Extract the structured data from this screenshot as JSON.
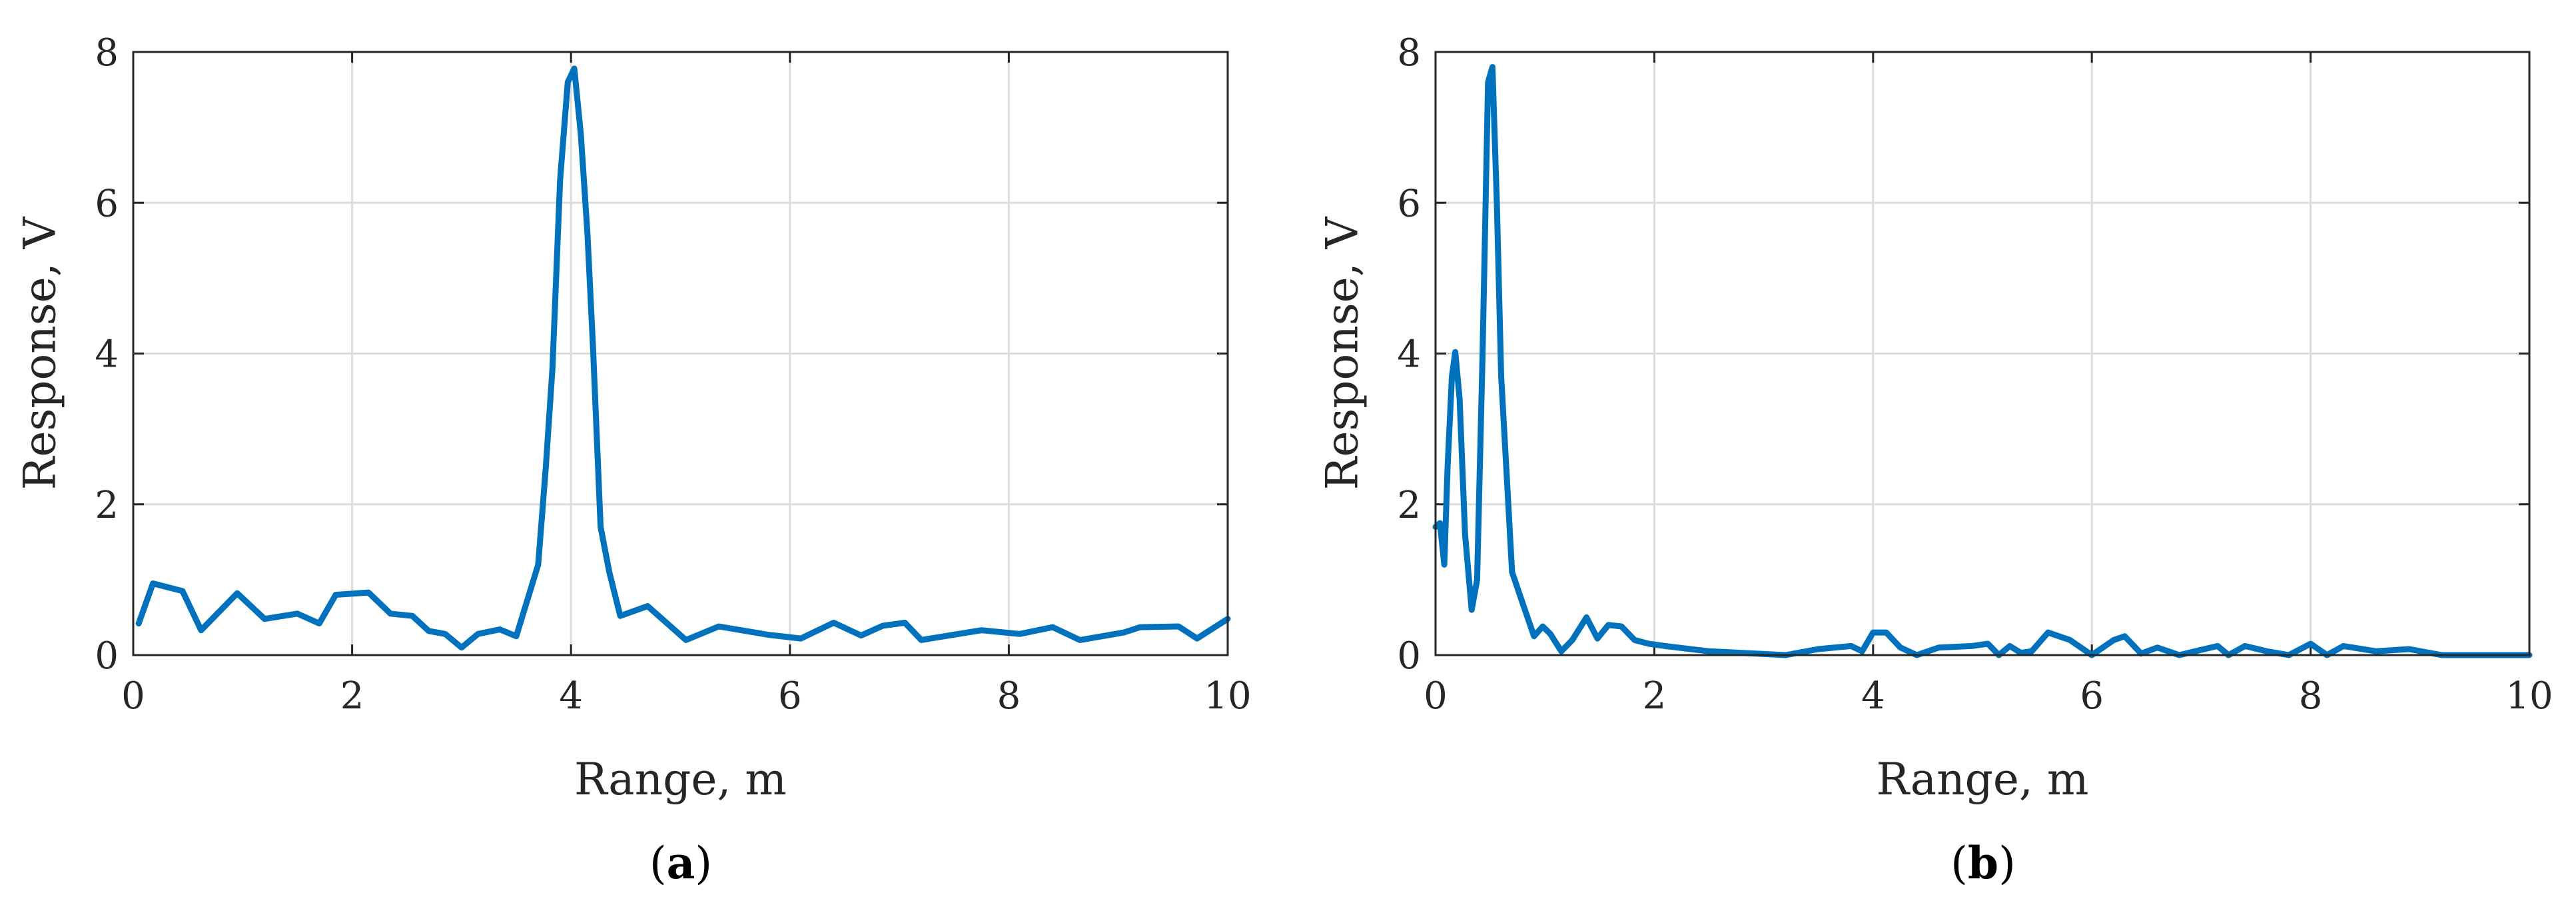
{
  "chart_data": [
    {
      "type": "line",
      "caption_letter": "a",
      "xlabel": "Range, m",
      "ylabel": "Response, V",
      "xlim": [
        0,
        10
      ],
      "ylim": [
        0,
        8
      ],
      "xticks": [
        0,
        2,
        4,
        6,
        8,
        10
      ],
      "yticks": [
        0,
        2,
        4,
        6,
        8
      ],
      "grid": true,
      "color": "#0072BD",
      "series": [
        {
          "x": [
            0.05,
            0.18,
            0.45,
            0.62,
            0.95,
            1.2,
            1.5,
            1.7,
            1.85,
            2.15,
            2.35,
            2.55,
            2.7,
            2.85,
            3.0,
            3.15,
            3.35,
            3.5,
            3.7,
            3.77,
            3.83,
            3.9,
            3.97,
            4.03,
            4.09,
            4.15,
            4.2,
            4.27,
            4.35,
            4.45,
            4.7,
            5.05,
            5.35,
            5.8,
            6.1,
            6.4,
            6.65,
            6.85,
            7.05,
            7.2,
            7.75,
            8.1,
            8.4,
            8.65,
            9.05,
            9.2,
            9.55,
            9.72,
            10.0
          ],
          "y": [
            0.42,
            0.95,
            0.85,
            0.33,
            0.82,
            0.48,
            0.55,
            0.42,
            0.8,
            0.83,
            0.55,
            0.52,
            0.32,
            0.28,
            0.1,
            0.28,
            0.34,
            0.25,
            1.2,
            2.5,
            3.8,
            6.3,
            7.6,
            7.78,
            6.9,
            5.6,
            4.1,
            1.7,
            1.1,
            0.52,
            0.65,
            0.2,
            0.38,
            0.27,
            0.22,
            0.43,
            0.26,
            0.39,
            0.43,
            0.2,
            0.33,
            0.28,
            0.37,
            0.2,
            0.3,
            0.37,
            0.38,
            0.22,
            0.48
          ]
        }
      ]
    },
    {
      "type": "line",
      "caption_letter": "b",
      "xlabel": "Range, m",
      "ylabel": "Response, V",
      "xlim": [
        0,
        10
      ],
      "ylim": [
        0,
        8
      ],
      "xticks": [
        0,
        2,
        4,
        6,
        8,
        10
      ],
      "yticks": [
        0,
        2,
        4,
        6,
        8
      ],
      "grid": true,
      "color": "#0072BD",
      "series": [
        {
          "x": [
            0.0,
            0.04,
            0.08,
            0.11,
            0.15,
            0.18,
            0.22,
            0.27,
            0.33,
            0.38,
            0.43,
            0.48,
            0.52,
            0.56,
            0.6,
            0.65,
            0.7,
            0.77,
            0.9,
            0.98,
            1.05,
            1.15,
            1.25,
            1.38,
            1.48,
            1.58,
            1.7,
            1.82,
            1.95,
            2.1,
            2.5,
            3.2,
            3.5,
            3.8,
            3.9,
            4.0,
            4.12,
            4.25,
            4.4,
            4.6,
            4.9,
            5.05,
            5.15,
            5.25,
            5.35,
            5.45,
            5.6,
            5.8,
            6.0,
            6.2,
            6.3,
            6.45,
            6.6,
            6.8,
            7.0,
            7.15,
            7.25,
            7.4,
            7.6,
            7.8,
            8.0,
            8.15,
            8.3,
            8.6,
            8.9,
            9.2,
            9.6,
            10.0
          ],
          "y": [
            1.7,
            1.75,
            1.2,
            2.5,
            3.7,
            4.02,
            3.4,
            1.6,
            0.6,
            1.0,
            4.0,
            7.6,
            7.8,
            6.0,
            3.7,
            2.4,
            1.1,
            0.8,
            0.25,
            0.38,
            0.28,
            0.05,
            0.2,
            0.5,
            0.22,
            0.4,
            0.38,
            0.2,
            0.15,
            0.12,
            0.05,
            0.0,
            0.08,
            0.12,
            0.05,
            0.3,
            0.3,
            0.1,
            0.0,
            0.1,
            0.12,
            0.15,
            0.0,
            0.12,
            0.03,
            0.05,
            0.3,
            0.2,
            0.0,
            0.2,
            0.25,
            0.02,
            0.1,
            0.0,
            0.07,
            0.12,
            0.0,
            0.12,
            0.05,
            0.0,
            0.15,
            0.0,
            0.12,
            0.05,
            0.08,
            0.0,
            0.0,
            0.0
          ]
        }
      ]
    }
  ]
}
